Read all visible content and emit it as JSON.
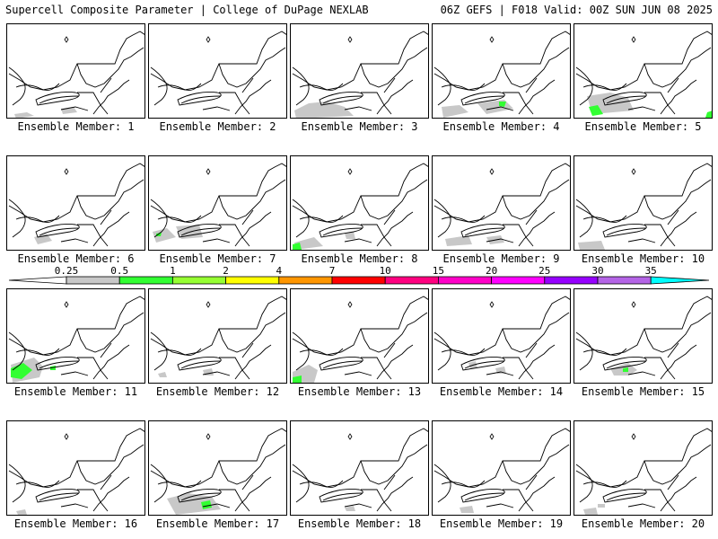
{
  "header": {
    "left_title": "Supercell Composite Parameter | College of DuPage NEXLAB",
    "right_title": "06Z GEFS | F018 Valid: 00Z SUN JUN 08 2025"
  },
  "panels": [
    {
      "label": "Ensemble Member: 1"
    },
    {
      "label": "Ensemble Member: 2"
    },
    {
      "label": "Ensemble Member: 3"
    },
    {
      "label": "Ensemble Member: 4"
    },
    {
      "label": "Ensemble Member: 5"
    },
    {
      "label": "Ensemble Member: 6"
    },
    {
      "label": "Ensemble Member: 7"
    },
    {
      "label": "Ensemble Member: 8"
    },
    {
      "label": "Ensemble Member: 9"
    },
    {
      "label": "Ensemble Member: 10"
    },
    {
      "label": "Ensemble Member: 11"
    },
    {
      "label": "Ensemble Member: 12"
    },
    {
      "label": "Ensemble Member: 13"
    },
    {
      "label": "Ensemble Member: 14"
    },
    {
      "label": "Ensemble Member: 15"
    },
    {
      "label": "Ensemble Member: 16"
    },
    {
      "label": "Ensemble Member: 17"
    },
    {
      "label": "Ensemble Member: 18"
    },
    {
      "label": "Ensemble Member: 19"
    },
    {
      "label": "Ensemble Member: 20"
    }
  ],
  "colorbar": {
    "ticks": [
      "0.25",
      "0.5",
      "1",
      "2",
      "4",
      "7",
      "10",
      "15",
      "20",
      "25",
      "30",
      "35"
    ],
    "colors": [
      "#c8c8c8",
      "#32ff32",
      "#96ff32",
      "#ffff00",
      "#ff9600",
      "#ff0000",
      "#ff0080",
      "#ff00c8",
      "#ff00ff",
      "#9600ff",
      "#b464e6",
      "#00ffff"
    ]
  },
  "colors": {
    "shade_low": "#c8c8c8",
    "shade_mid": "#32ff32"
  }
}
